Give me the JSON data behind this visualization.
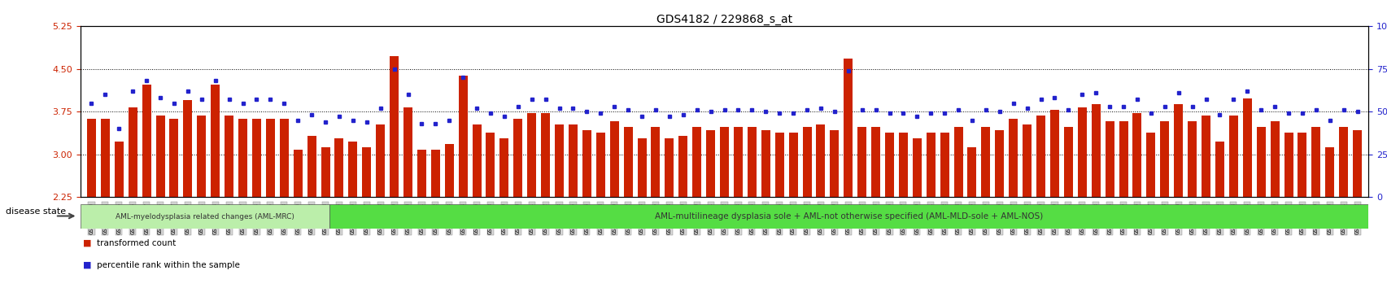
{
  "title": "GDS4182 / 229868_s_at",
  "ylim_left": [
    2.25,
    5.25
  ],
  "ylim_right": [
    0,
    100
  ],
  "yticks_left": [
    2.25,
    3.0,
    3.75,
    4.5,
    5.25
  ],
  "yticks_right": [
    0,
    25,
    50,
    75,
    100
  ],
  "baseline": 2.25,
  "bar_color": "#cc2200",
  "dot_color": "#2222cc",
  "bg_color": "#ffffff",
  "disease_group1_color": "#bbeeaa",
  "disease_group2_color": "#55dd44",
  "disease_group1_label": "AML-myelodysplasia related changes (AML-MRC)",
  "disease_group2_label": "AML-multilineage dysplasia sole + AML-not otherwise specified (AML-MLD-sole + AML-NOS)",
  "legend_transformed": "transformed count",
  "legend_percentile": "percentile rank within the sample",
  "disease_state_label": "disease state",
  "samples": [
    "GSM531600",
    "GSM531601",
    "GSM531605",
    "GSM531615",
    "GSM531617",
    "GSM531624",
    "GSM531627",
    "GSM531629",
    "GSM531631",
    "GSM531634",
    "GSM531636",
    "GSM531637",
    "GSM531654",
    "GSM531655",
    "GSM531658",
    "GSM531660",
    "GSM531602",
    "GSM531603",
    "GSM531604",
    "GSM531606",
    "GSM531607",
    "GSM531608",
    "GSM531609",
    "GSM531610",
    "GSM531611",
    "GSM531612",
    "GSM531613",
    "GSM531614",
    "GSM531616",
    "GSM531618",
    "GSM531619",
    "GSM531620",
    "GSM531621",
    "GSM531622",
    "GSM531623",
    "GSM531625",
    "GSM531626",
    "GSM531628",
    "GSM531630",
    "GSM531632",
    "GSM531633",
    "GSM531635",
    "GSM531638",
    "GSM531639",
    "GSM531640",
    "GSM531641",
    "GSM531642",
    "GSM531643",
    "GSM531644",
    "GSM531645",
    "GSM531646",
    "GSM531647",
    "GSM531648",
    "GSM531649",
    "GSM531650",
    "GSM531651",
    "GSM531652",
    "GSM531653",
    "GSM531656",
    "GSM531657",
    "GSM531659",
    "GSM531661",
    "GSM531662",
    "GSM531663",
    "GSM531664",
    "GSM531665",
    "GSM531666",
    "GSM531667",
    "GSM531668",
    "GSM531669",
    "GSM531670",
    "GSM531671",
    "GSM531672",
    "GSM531673",
    "GSM531674",
    "GSM531675",
    "GSM531676",
    "GSM531677",
    "GSM531678",
    "GSM531679",
    "GSM531680",
    "GSM531681",
    "GSM531682",
    "GSM531683",
    "GSM531684",
    "GSM531685",
    "GSM531686",
    "GSM531687",
    "GSM531688",
    "GSM531689",
    "GSM531690",
    "GSM531691",
    "GSM531192"
  ],
  "values": [
    3.62,
    3.62,
    3.22,
    3.82,
    4.22,
    3.68,
    3.62,
    3.95,
    3.68,
    4.22,
    3.68,
    3.62,
    3.62,
    3.62,
    3.62,
    3.08,
    3.32,
    3.12,
    3.28,
    3.22,
    3.12,
    3.52,
    4.72,
    3.82,
    3.08,
    3.08,
    3.18,
    4.38,
    3.52,
    3.38,
    3.28,
    3.62,
    3.72,
    3.72,
    3.52,
    3.52,
    3.42,
    3.38,
    3.58,
    3.48,
    3.28,
    3.48,
    3.28,
    3.32,
    3.48,
    3.42,
    3.48,
    3.48,
    3.48,
    3.42,
    3.38,
    3.38,
    3.48,
    3.52,
    3.42,
    4.68,
    3.48,
    3.48,
    3.38,
    3.38,
    3.28,
    3.38,
    3.38,
    3.48,
    3.12,
    3.48,
    3.42,
    3.62,
    3.52,
    3.68,
    3.78,
    3.48,
    3.82,
    3.88,
    3.58,
    3.58,
    3.72,
    3.38,
    3.58,
    3.88,
    3.58,
    3.68,
    3.22,
    3.68,
    3.98,
    3.48,
    3.58,
    3.38,
    3.38,
    3.48,
    3.12,
    3.48,
    3.42
  ],
  "percentile_values": [
    55,
    60,
    40,
    62,
    68,
    58,
    55,
    62,
    57,
    68,
    57,
    55,
    57,
    57,
    55,
    45,
    48,
    44,
    47,
    45,
    44,
    52,
    75,
    60,
    43,
    43,
    45,
    70,
    52,
    49,
    47,
    53,
    57,
    57,
    52,
    52,
    50,
    49,
    53,
    51,
    47,
    51,
    47,
    48,
    51,
    50,
    51,
    51,
    51,
    50,
    49,
    49,
    51,
    52,
    50,
    74,
    51,
    51,
    49,
    49,
    47,
    49,
    49,
    51,
    45,
    51,
    50,
    55,
    52,
    57,
    58,
    51,
    60,
    61,
    53,
    53,
    57,
    49,
    53,
    61,
    53,
    57,
    48,
    57,
    62,
    51,
    53,
    49,
    49,
    51,
    45,
    51,
    50
  ],
  "group1_count": 18,
  "group2_count": 75
}
